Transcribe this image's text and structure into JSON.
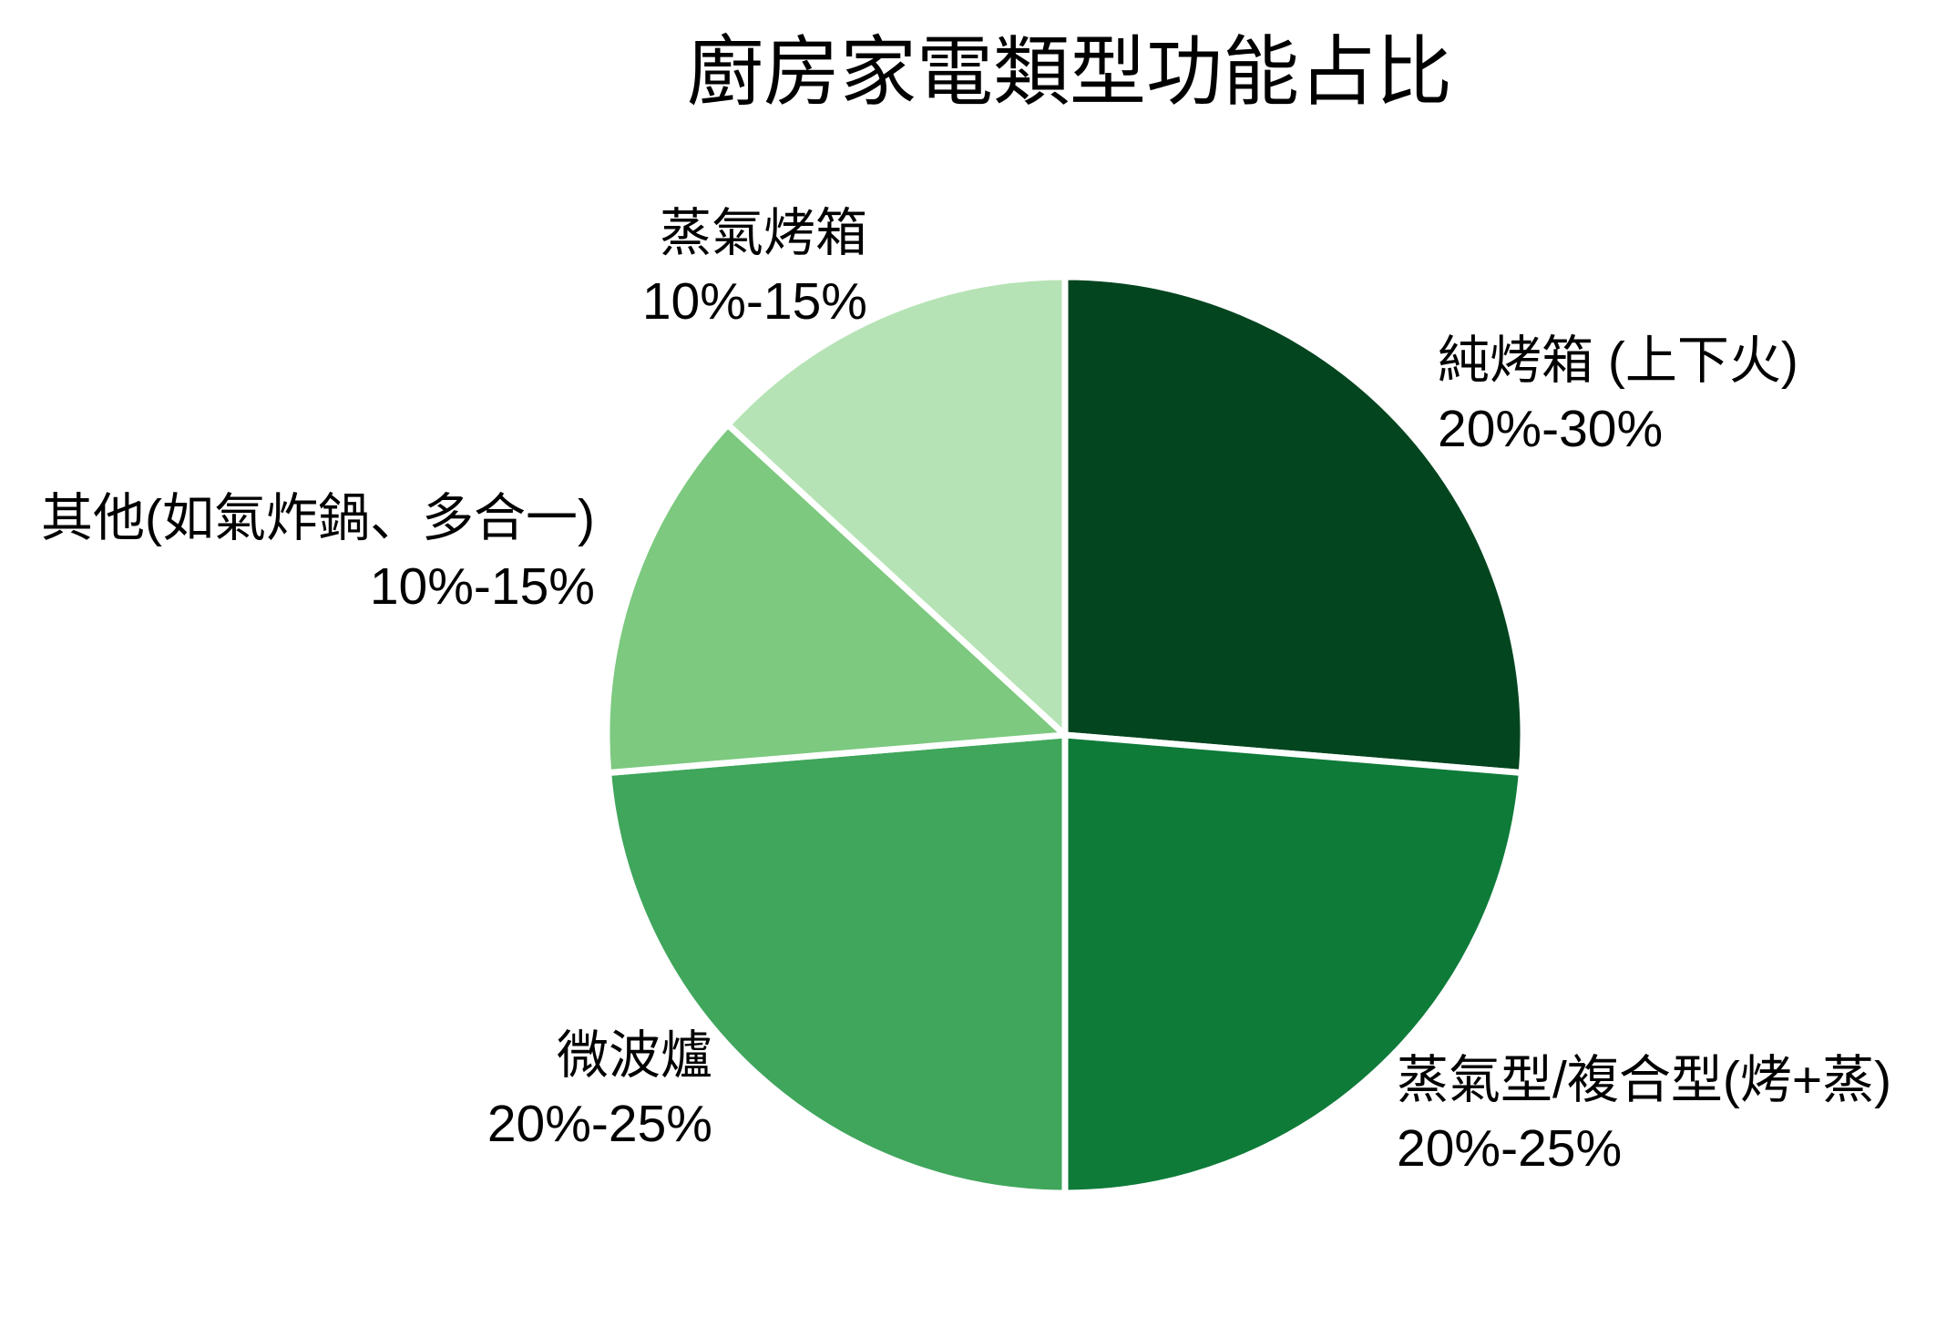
{
  "title": "廚房家電類型功能占比",
  "chart_data": {
    "type": "pie",
    "title": "廚房家電類型功能占比",
    "direction": "clockwise",
    "start_angle_deg": 0,
    "total": 95,
    "unit": "%",
    "legend": "none",
    "background_color": "#FFFFFF",
    "slice_border_color": "#FFFFFF",
    "text_color": "#000000",
    "slices": [
      {
        "label": "純烤箱 (上下火)",
        "range": "20%-30%",
        "value": 25,
        "color": "#03451F"
      },
      {
        "label": "蒸氣型/複合型(烤+蒸)",
        "range": "20%-25%",
        "value": 22.5,
        "color": "#0E7B39"
      },
      {
        "label": "微波爐",
        "range": "20%-25%",
        "value": 22.5,
        "color": "#3FA65C"
      },
      {
        "label": "其他(如氣炸鍋、多合一)",
        "range": "10%-15%",
        "value": 12.5,
        "color": "#7CC97F"
      },
      {
        "label": "蒸氣烤箱",
        "range": "10%-15%",
        "value": 12.5,
        "color": "#B6E3B5"
      }
    ]
  }
}
